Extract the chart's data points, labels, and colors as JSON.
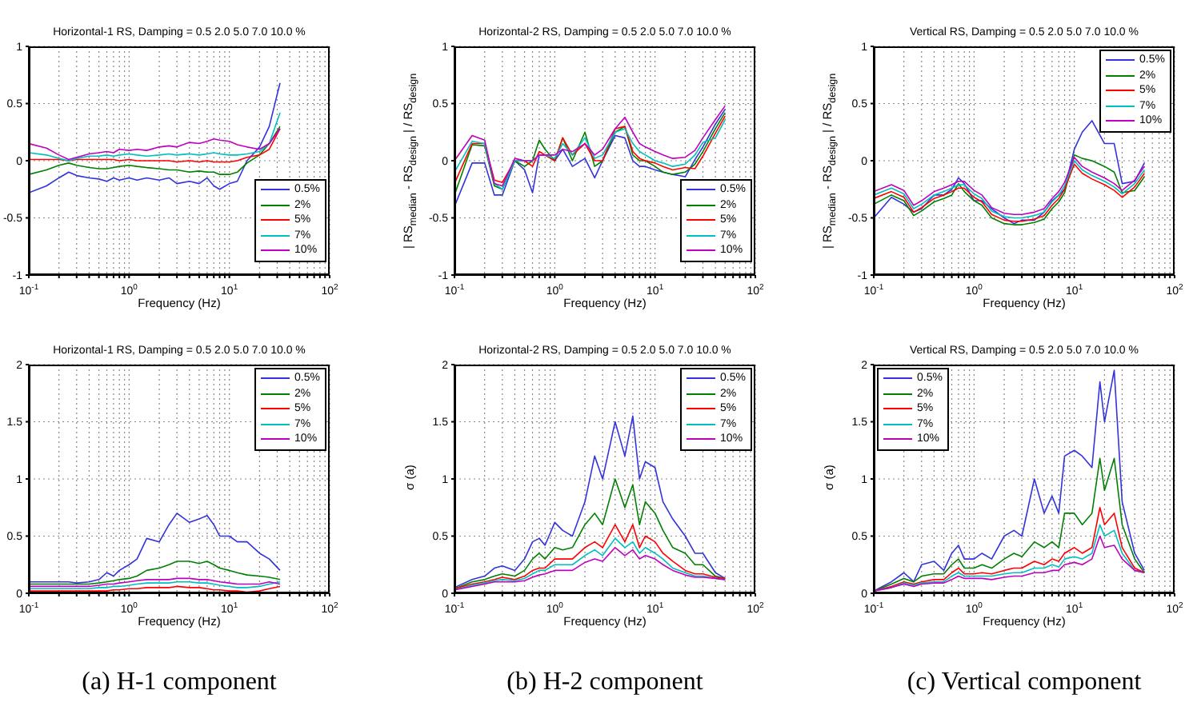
{
  "chart_data": [
    {
      "type": "line",
      "title": "Horizontal-1 RS, Damping = 0.5 2.0 5.0 7.0 10.0 %",
      "xlabel": "Frequency (Hz)",
      "log": "x",
      "grid": true,
      "legend": "bottom right",
      "xlim": [
        0.1,
        100
      ],
      "xticks": [
        {
          "value": 0.1,
          "label": "10$^{-1}$"
        },
        {
          "value": 0.2,
          "label": null
        },
        {
          "value": 0.3,
          "label": null
        },
        {
          "value": 0.4,
          "label": null
        },
        {
          "value": 0.5,
          "label": null
        },
        {
          "value": 0.6,
          "label": null
        },
        {
          "value": 0.7,
          "label": null
        },
        {
          "value": 0.8,
          "label": null
        },
        {
          "value": 0.9,
          "label": null
        },
        {
          "value": 1,
          "label": "10$^{0}$"
        },
        {
          "value": 2,
          "label": null
        },
        {
          "value": 3,
          "label": null
        },
        {
          "value": 4,
          "label": null
        },
        {
          "value": 5,
          "label": null
        },
        {
          "value": 6,
          "label": null
        },
        {
          "value": 7,
          "label": null
        },
        {
          "value": 8,
          "label": null
        },
        {
          "value": 9,
          "label": null
        },
        {
          "value": 10,
          "label": "10$^{1}$"
        },
        {
          "value": 20,
          "label": null
        },
        {
          "value": 30,
          "label": null
        },
        {
          "value": 40,
          "label": null
        },
        {
          "value": 50,
          "label": null
        },
        {
          "value": 60,
          "label": null
        },
        {
          "value": 70,
          "label": null
        },
        {
          "value": 80,
          "label": null
        },
        {
          "value": 90,
          "label": null
        },
        {
          "value": 100,
          "label": "10$^{2}$"
        }
      ],
      "ylim": [
        -1,
        1
      ],
      "yticks": [
        -1,
        -0.5,
        0,
        0.5,
        1
      ],
      "x": [
        0.1,
        0.15,
        0.2,
        0.25,
        0.3,
        0.4,
        0.5,
        0.6,
        0.7,
        0.8,
        1,
        1.2,
        1.5,
        2,
        2.5,
        3,
        4,
        5,
        6,
        7,
        8,
        10,
        12,
        15,
        20,
        25,
        32
      ],
      "series": [
        {
          "name": "0.5%",
          "color": "#3333dd",
          "values": [
            -0.28,
            -0.22,
            -0.15,
            -0.1,
            -0.13,
            -0.15,
            -0.16,
            -0.18,
            -0.15,
            -0.17,
            -0.15,
            -0.17,
            -0.15,
            -0.17,
            -0.15,
            -0.2,
            -0.18,
            -0.2,
            -0.15,
            -0.22,
            -0.25,
            -0.2,
            -0.18,
            0.0,
            0.12,
            0.3,
            0.68
          ]
        },
        {
          "name": "2%",
          "color": "#008000",
          "values": [
            -0.12,
            -0.08,
            -0.04,
            -0.02,
            -0.04,
            -0.06,
            -0.07,
            -0.07,
            -0.06,
            -0.05,
            -0.04,
            -0.05,
            -0.06,
            -0.07,
            -0.08,
            -0.08,
            -0.1,
            -0.09,
            -0.1,
            -0.1,
            -0.12,
            -0.12,
            -0.1,
            -0.02,
            0.05,
            0.15,
            0.3
          ]
        },
        {
          "name": "5%",
          "color": "#ff0000",
          "values": [
            0.01,
            0.01,
            0.01,
            0.0,
            0.01,
            0.01,
            0.01,
            0.01,
            0.01,
            0.0,
            0.01,
            0.0,
            0.0,
            0.0,
            0.0,
            -0.01,
            0.0,
            -0.01,
            0.0,
            -0.01,
            -0.01,
            -0.01,
            0.0,
            0.03,
            0.05,
            0.1,
            0.28
          ]
        },
        {
          "name": "7%",
          "color": "#00bfbf",
          "values": [
            0.07,
            0.05,
            0.02,
            0.0,
            0.02,
            0.04,
            0.04,
            0.05,
            0.04,
            0.05,
            0.06,
            0.05,
            0.04,
            0.05,
            0.06,
            0.05,
            0.06,
            0.05,
            0.06,
            0.07,
            0.06,
            0.05,
            0.05,
            0.06,
            0.08,
            0.15,
            0.42
          ]
        },
        {
          "name": "10%",
          "color": "#bf00bf",
          "values": [
            0.15,
            0.11,
            0.05,
            0.01,
            0.03,
            0.06,
            0.07,
            0.08,
            0.07,
            0.1,
            0.09,
            0.1,
            0.09,
            0.12,
            0.13,
            0.12,
            0.16,
            0.15,
            0.17,
            0.19,
            0.18,
            0.17,
            0.14,
            0.12,
            0.1,
            0.15,
            0.28
          ]
        }
      ]
    },
    {
      "type": "line",
      "title": "Horizontal-2 RS, Damping = 0.5 2.0 5.0 7.0 10.0 %",
      "xlabel": "Frequency (Hz)",
      "ylabel": "| RS$_{median}$ - RS$_{design}$ | / RS$_{design}$",
      "log": "x",
      "grid": true,
      "legend": "bottom right",
      "xlim": [
        0.1,
        100
      ],
      "xticks": [
        {
          "value": 0.1,
          "label": "10$^{-1}$"
        },
        {
          "value": 0.2,
          "label": null
        },
        {
          "value": 0.3,
          "label": null
        },
        {
          "value": 0.4,
          "label": null
        },
        {
          "value": 0.5,
          "label": null
        },
        {
          "value": 0.6,
          "label": null
        },
        {
          "value": 0.7,
          "label": null
        },
        {
          "value": 0.8,
          "label": null
        },
        {
          "value": 0.9,
          "label": null
        },
        {
          "value": 1,
          "label": "10$^{0}$"
        },
        {
          "value": 2,
          "label": null
        },
        {
          "value": 3,
          "label": null
        },
        {
          "value": 4,
          "label": null
        },
        {
          "value": 5,
          "label": null
        },
        {
          "value": 6,
          "label": null
        },
        {
          "value": 7,
          "label": null
        },
        {
          "value": 8,
          "label": null
        },
        {
          "value": 9,
          "label": null
        },
        {
          "value": 10,
          "label": "10$^{1}$"
        },
        {
          "value": 20,
          "label": null
        },
        {
          "value": 30,
          "label": null
        },
        {
          "value": 40,
          "label": null
        },
        {
          "value": 50,
          "label": null
        },
        {
          "value": 60,
          "label": null
        },
        {
          "value": 70,
          "label": null
        },
        {
          "value": 80,
          "label": null
        },
        {
          "value": 90,
          "label": null
        },
        {
          "value": 100,
          "label": "10$^{2}$"
        }
      ],
      "ylim": [
        -1,
        1
      ],
      "yticks": [
        -1,
        -0.5,
        0,
        0.5,
        1
      ],
      "x": [
        0.1,
        0.15,
        0.2,
        0.25,
        0.3,
        0.4,
        0.5,
        0.6,
        0.7,
        0.8,
        1,
        1.2,
        1.5,
        2,
        2.5,
        3,
        4,
        5,
        6,
        7,
        8,
        10,
        12,
        15,
        20,
        25,
        30,
        40,
        50
      ],
      "series": [
        {
          "name": "0.5%",
          "color": "#3333dd",
          "values": [
            -0.4,
            -0.02,
            -0.02,
            -0.3,
            -0.3,
            0.0,
            -0.08,
            -0.28,
            0.05,
            0.05,
            0.0,
            0.1,
            -0.05,
            0.02,
            -0.15,
            0.0,
            0.22,
            0.2,
            0.0,
            -0.05,
            -0.05,
            -0.08,
            -0.1,
            -0.12,
            -0.14,
            0.01,
            0.12,
            0.32,
            0.45
          ]
        },
        {
          "name": "2%",
          "color": "#008000",
          "values": [
            -0.3,
            0.14,
            0.13,
            -0.22,
            -0.25,
            0.0,
            -0.05,
            0.0,
            0.18,
            0.1,
            0.0,
            0.2,
            0.0,
            0.25,
            -0.05,
            0.0,
            0.25,
            0.3,
            0.05,
            0.0,
            0.0,
            -0.05,
            -0.1,
            -0.12,
            -0.1,
            -0.03,
            0.08,
            0.28,
            0.42
          ]
        },
        {
          "name": "5%",
          "color": "#ff0000",
          "values": [
            -0.2,
            0.15,
            0.15,
            -0.17,
            -0.19,
            0.0,
            0.0,
            -0.05,
            0.08,
            0.05,
            0.0,
            0.2,
            0.05,
            0.15,
            0.0,
            0.0,
            0.28,
            0.3,
            0.08,
            0.02,
            0.0,
            -0.02,
            -0.05,
            -0.08,
            -0.06,
            -0.07,
            0.04,
            0.24,
            0.39
          ]
        },
        {
          "name": "7%",
          "color": "#00bfbf",
          "values": [
            -0.1,
            0.17,
            0.15,
            -0.2,
            -0.25,
            0.0,
            0.0,
            0.0,
            0.05,
            0.05,
            0.02,
            0.15,
            0.05,
            0.2,
            0.02,
            0.05,
            0.25,
            0.28,
            0.15,
            0.08,
            0.05,
            0.0,
            -0.02,
            -0.05,
            -0.03,
            0.05,
            0.16,
            0.2,
            0.36
          ]
        },
        {
          "name": "10%",
          "color": "#bf00bf",
          "values": [
            0.0,
            0.22,
            0.18,
            -0.2,
            -0.22,
            0.02,
            0.0,
            0.0,
            0.05,
            0.05,
            0.05,
            0.1,
            0.08,
            0.15,
            0.05,
            0.1,
            0.28,
            0.38,
            0.25,
            0.15,
            0.12,
            0.08,
            0.05,
            0.02,
            0.03,
            0.09,
            0.2,
            0.36,
            0.48
          ]
        }
      ]
    },
    {
      "type": "line",
      "title": "Vertical RS, Damping = 0.5 2.0 5.0 7.0 10.0 %",
      "xlabel": "Frequency (Hz)",
      "ylabel": "| RS$_{median}$ - RS$_{design}$ | / RS$_{design}$",
      "log": "x",
      "grid": true,
      "legend": "top right",
      "xlim": [
        0.1,
        100
      ],
      "xticks": [
        {
          "value": 0.1,
          "label": "10$^{-1}$"
        },
        {
          "value": 0.2,
          "label": null
        },
        {
          "value": 0.3,
          "label": null
        },
        {
          "value": 0.4,
          "label": null
        },
        {
          "value": 0.5,
          "label": null
        },
        {
          "value": 0.6,
          "label": null
        },
        {
          "value": 0.7,
          "label": null
        },
        {
          "value": 0.8,
          "label": null
        },
        {
          "value": 0.9,
          "label": null
        },
        {
          "value": 1,
          "label": "10$^{0}$"
        },
        {
          "value": 2,
          "label": null
        },
        {
          "value": 3,
          "label": null
        },
        {
          "value": 4,
          "label": null
        },
        {
          "value": 5,
          "label": null
        },
        {
          "value": 6,
          "label": null
        },
        {
          "value": 7,
          "label": null
        },
        {
          "value": 8,
          "label": null
        },
        {
          "value": 9,
          "label": null
        },
        {
          "value": 10,
          "label": "10$^{1}$"
        },
        {
          "value": 20,
          "label": null
        },
        {
          "value": 30,
          "label": null
        },
        {
          "value": 40,
          "label": null
        },
        {
          "value": 50,
          "label": null
        },
        {
          "value": 60,
          "label": null
        },
        {
          "value": 70,
          "label": null
        },
        {
          "value": 80,
          "label": null
        },
        {
          "value": 90,
          "label": null
        },
        {
          "value": 100,
          "label": "10$^{2}$"
        }
      ],
      "ylim": [
        -1,
        1
      ],
      "yticks": [
        -1,
        -0.5,
        0,
        0.5,
        1
      ],
      "x": [
        0.1,
        0.15,
        0.2,
        0.25,
        0.3,
        0.4,
        0.5,
        0.6,
        0.7,
        0.8,
        1,
        1.2,
        1.5,
        2,
        2.5,
        3,
        4,
        5,
        6,
        7,
        8,
        10,
        12,
        15,
        20,
        25,
        30,
        40,
        50
      ],
      "series": [
        {
          "name": "0.5%",
          "color": "#3333dd",
          "values": [
            -0.5,
            -0.32,
            -0.38,
            -0.45,
            -0.42,
            -0.3,
            -0.3,
            -0.25,
            -0.15,
            -0.2,
            -0.35,
            -0.35,
            -0.42,
            -0.5,
            -0.55,
            -0.52,
            -0.52,
            -0.45,
            -0.35,
            -0.3,
            -0.25,
            0.1,
            0.25,
            0.35,
            0.15,
            0.15,
            -0.2,
            -0.18,
            -0.02
          ]
        },
        {
          "name": "2%",
          "color": "#008000",
          "values": [
            -0.38,
            -0.3,
            -0.35,
            -0.48,
            -0.44,
            -0.36,
            -0.33,
            -0.3,
            -0.2,
            -0.27,
            -0.35,
            -0.39,
            -0.5,
            -0.55,
            -0.56,
            -0.56,
            -0.54,
            -0.51,
            -0.42,
            -0.36,
            -0.28,
            0.05,
            0.02,
            0.0,
            -0.05,
            -0.1,
            -0.28,
            -0.26,
            -0.14
          ]
        },
        {
          "name": "5%",
          "color": "#ff0000",
          "values": [
            -0.33,
            -0.27,
            -0.32,
            -0.45,
            -0.41,
            -0.33,
            -0.3,
            -0.27,
            -0.24,
            -0.24,
            -0.32,
            -0.36,
            -0.47,
            -0.52,
            -0.53,
            -0.53,
            -0.51,
            -0.48,
            -0.39,
            -0.33,
            -0.25,
            -0.03,
            -0.11,
            -0.16,
            -0.21,
            -0.26,
            -0.32,
            -0.23,
            -0.11
          ]
        },
        {
          "name": "7%",
          "color": "#00bfbf",
          "values": [
            -0.3,
            -0.24,
            -0.29,
            -0.42,
            -0.38,
            -0.3,
            -0.27,
            -0.24,
            -0.21,
            -0.21,
            -0.29,
            -0.33,
            -0.44,
            -0.49,
            -0.5,
            -0.5,
            -0.48,
            -0.45,
            -0.36,
            -0.3,
            -0.22,
            0.0,
            -0.08,
            -0.13,
            -0.18,
            -0.23,
            -0.29,
            -0.2,
            -0.08
          ]
        },
        {
          "name": "10%",
          "color": "#bf00bf",
          "values": [
            -0.27,
            -0.21,
            -0.26,
            -0.39,
            -0.35,
            -0.27,
            -0.24,
            -0.21,
            -0.18,
            -0.18,
            -0.26,
            -0.3,
            -0.41,
            -0.46,
            -0.47,
            -0.47,
            -0.45,
            -0.42,
            -0.33,
            -0.27,
            -0.19,
            0.03,
            -0.05,
            -0.1,
            -0.15,
            -0.2,
            -0.26,
            -0.17,
            -0.05
          ]
        }
      ]
    },
    {
      "type": "line",
      "title": "Horizontal-1 RS, Damping = 0.5 2.0 5.0 7.0 10.0 %",
      "xlabel": "Frequency (Hz)",
      "log": "x",
      "grid": true,
      "legend": "top right",
      "annotations": [
        "(a) H-1 component"
      ],
      "xlim": [
        0.1,
        100
      ],
      "xticks": [
        {
          "value": 0.1,
          "label": "10$^{-1}$"
        },
        {
          "value": 0.2,
          "label": null
        },
        {
          "value": 0.3,
          "label": null
        },
        {
          "value": 0.4,
          "label": null
        },
        {
          "value": 0.5,
          "label": null
        },
        {
          "value": 0.6,
          "label": null
        },
        {
          "value": 0.7,
          "label": null
        },
        {
          "value": 0.8,
          "label": null
        },
        {
          "value": 0.9,
          "label": null
        },
        {
          "value": 1,
          "label": "10$^{0}$"
        },
        {
          "value": 2,
          "label": null
        },
        {
          "value": 3,
          "label": null
        },
        {
          "value": 4,
          "label": null
        },
        {
          "value": 5,
          "label": null
        },
        {
          "value": 6,
          "label": null
        },
        {
          "value": 7,
          "label": null
        },
        {
          "value": 8,
          "label": null
        },
        {
          "value": 9,
          "label": null
        },
        {
          "value": 10,
          "label": "10$^{1}$"
        },
        {
          "value": 20,
          "label": null
        },
        {
          "value": 30,
          "label": null
        },
        {
          "value": 40,
          "label": null
        },
        {
          "value": 50,
          "label": null
        },
        {
          "value": 60,
          "label": null
        },
        {
          "value": 70,
          "label": null
        },
        {
          "value": 80,
          "label": null
        },
        {
          "value": 90,
          "label": null
        },
        {
          "value": 100,
          "label": "10$^{2}$"
        }
      ],
      "ylim": [
        0,
        2
      ],
      "yticks": [
        0,
        0.5,
        1,
        1.5,
        2
      ],
      "x": [
        0.1,
        0.15,
        0.2,
        0.25,
        0.3,
        0.4,
        0.5,
        0.6,
        0.7,
        0.8,
        1,
        1.2,
        1.5,
        2,
        2.5,
        3,
        4,
        5,
        6,
        7,
        8,
        10,
        12,
        15,
        20,
        25,
        32
      ],
      "series": [
        {
          "name": "0.5%",
          "color": "#3333dd",
          "values": [
            0.1,
            0.1,
            0.1,
            0.1,
            0.09,
            0.1,
            0.12,
            0.18,
            0.15,
            0.2,
            0.25,
            0.3,
            0.48,
            0.45,
            0.6,
            0.7,
            0.62,
            0.65,
            0.68,
            0.6,
            0.5,
            0.5,
            0.45,
            0.45,
            0.35,
            0.3,
            0.2
          ]
        },
        {
          "name": "2%",
          "color": "#008000",
          "values": [
            0.08,
            0.08,
            0.08,
            0.08,
            0.08,
            0.08,
            0.09,
            0.1,
            0.11,
            0.12,
            0.13,
            0.15,
            0.2,
            0.22,
            0.25,
            0.28,
            0.28,
            0.26,
            0.28,
            0.25,
            0.22,
            0.2,
            0.18,
            0.16,
            0.15,
            0.14,
            0.12
          ]
        },
        {
          "name": "5%",
          "color": "#ff0000",
          "values": [
            0.02,
            0.02,
            0.02,
            0.02,
            0.02,
            0.02,
            0.02,
            0.02,
            0.03,
            0.03,
            0.04,
            0.04,
            0.05,
            0.05,
            0.05,
            0.06,
            0.05,
            0.05,
            0.04,
            0.03,
            0.03,
            0.02,
            0.02,
            0.01,
            0.02,
            0.04,
            0.06
          ]
        },
        {
          "name": "7%",
          "color": "#00bfbf",
          "values": [
            0.04,
            0.04,
            0.04,
            0.04,
            0.04,
            0.04,
            0.05,
            0.05,
            0.06,
            0.06,
            0.07,
            0.08,
            0.09,
            0.09,
            0.09,
            0.1,
            0.1,
            0.09,
            0.09,
            0.08,
            0.07,
            0.06,
            0.05,
            0.05,
            0.06,
            0.08,
            0.1
          ]
        },
        {
          "name": "10%",
          "color": "#bf00bf",
          "values": [
            0.06,
            0.06,
            0.06,
            0.06,
            0.06,
            0.06,
            0.07,
            0.08,
            0.08,
            0.09,
            0.1,
            0.11,
            0.12,
            0.12,
            0.12,
            0.13,
            0.13,
            0.12,
            0.12,
            0.11,
            0.1,
            0.09,
            0.08,
            0.08,
            0.08,
            0.1,
            0.08
          ]
        }
      ]
    },
    {
      "type": "line",
      "title": "Horizontal-2 RS, Damping = 0.5 2.0 5.0 7.0 10.0 %",
      "xlabel": "Frequency (Hz)",
      "ylabel": "σ (a)",
      "log": "x",
      "grid": true,
      "legend": "top right",
      "annotations": [
        "(b) H-2 component"
      ],
      "xlim": [
        0.1,
        100
      ],
      "xticks": [
        {
          "value": 0.1,
          "label": "10$^{-1}$"
        },
        {
          "value": 0.2,
          "label": null
        },
        {
          "value": 0.3,
          "label": null
        },
        {
          "value": 0.4,
          "label": null
        },
        {
          "value": 0.5,
          "label": null
        },
        {
          "value": 0.6,
          "label": null
        },
        {
          "value": 0.7,
          "label": null
        },
        {
          "value": 0.8,
          "label": null
        },
        {
          "value": 0.9,
          "label": null
        },
        {
          "value": 1,
          "label": "10$^{0}$"
        },
        {
          "value": 2,
          "label": null
        },
        {
          "value": 3,
          "label": null
        },
        {
          "value": 4,
          "label": null
        },
        {
          "value": 5,
          "label": null
        },
        {
          "value": 6,
          "label": null
        },
        {
          "value": 7,
          "label": null
        },
        {
          "value": 8,
          "label": null
        },
        {
          "value": 9,
          "label": null
        },
        {
          "value": 10,
          "label": "10$^{1}$"
        },
        {
          "value": 20,
          "label": null
        },
        {
          "value": 30,
          "label": null
        },
        {
          "value": 40,
          "label": null
        },
        {
          "value": 50,
          "label": null
        },
        {
          "value": 60,
          "label": null
        },
        {
          "value": 70,
          "label": null
        },
        {
          "value": 80,
          "label": null
        },
        {
          "value": 90,
          "label": null
        },
        {
          "value": 100,
          "label": "10$^{2}$"
        }
      ],
      "ylim": [
        0,
        2
      ],
      "yticks": [
        0,
        0.5,
        1,
        1.5,
        2
      ],
      "x": [
        0.1,
        0.15,
        0.2,
        0.25,
        0.3,
        0.4,
        0.5,
        0.6,
        0.7,
        0.8,
        1,
        1.2,
        1.5,
        2,
        2.5,
        3,
        4,
        5,
        6,
        7,
        8,
        10,
        12,
        15,
        20,
        25,
        30,
        40,
        50
      ],
      "series": [
        {
          "name": "0.5%",
          "color": "#3333dd",
          "values": [
            0.05,
            0.12,
            0.15,
            0.22,
            0.24,
            0.2,
            0.3,
            0.45,
            0.48,
            0.42,
            0.62,
            0.55,
            0.5,
            0.8,
            1.2,
            1.0,
            1.5,
            1.2,
            1.55,
            1.0,
            1.15,
            1.1,
            0.8,
            0.65,
            0.5,
            0.35,
            0.35,
            0.18,
            0.13
          ]
        },
        {
          "name": "2%",
          "color": "#008000",
          "values": [
            0.04,
            0.1,
            0.12,
            0.15,
            0.17,
            0.15,
            0.2,
            0.3,
            0.35,
            0.3,
            0.4,
            0.38,
            0.4,
            0.6,
            0.7,
            0.6,
            1.0,
            0.75,
            0.95,
            0.6,
            0.8,
            0.7,
            0.55,
            0.4,
            0.35,
            0.25,
            0.25,
            0.15,
            0.13
          ]
        },
        {
          "name": "5%",
          "color": "#ff0000",
          "values": [
            0.04,
            0.08,
            0.1,
            0.12,
            0.14,
            0.12,
            0.15,
            0.2,
            0.22,
            0.22,
            0.3,
            0.3,
            0.3,
            0.4,
            0.45,
            0.4,
            0.6,
            0.45,
            0.6,
            0.4,
            0.5,
            0.45,
            0.35,
            0.28,
            0.2,
            0.17,
            0.17,
            0.14,
            0.13
          ]
        },
        {
          "name": "7%",
          "color": "#00bfbf",
          "values": [
            0.03,
            0.07,
            0.09,
            0.11,
            0.12,
            0.11,
            0.13,
            0.17,
            0.2,
            0.2,
            0.25,
            0.25,
            0.25,
            0.33,
            0.38,
            0.33,
            0.48,
            0.4,
            0.45,
            0.35,
            0.4,
            0.35,
            0.3,
            0.22,
            0.18,
            0.15,
            0.15,
            0.13,
            0.12
          ]
        },
        {
          "name": "10%",
          "color": "#bf00bf",
          "values": [
            0.03,
            0.06,
            0.08,
            0.1,
            0.1,
            0.1,
            0.11,
            0.14,
            0.16,
            0.17,
            0.2,
            0.2,
            0.2,
            0.27,
            0.3,
            0.28,
            0.4,
            0.33,
            0.38,
            0.3,
            0.33,
            0.3,
            0.25,
            0.2,
            0.16,
            0.14,
            0.14,
            0.13,
            0.12
          ]
        }
      ]
    },
    {
      "type": "line",
      "title": "Vertical RS, Damping = 0.5 2.0 5.0 7.0 10.0 %",
      "xlabel": "Frequency (Hz)",
      "ylabel": "σ (a)",
      "log": "x",
      "grid": true,
      "legend": "top left",
      "annotations": [
        "(c) Vertical component"
      ],
      "xlim": [
        0.1,
        100
      ],
      "xticks": [
        {
          "value": 0.1,
          "label": "10$^{-1}$"
        },
        {
          "value": 0.2,
          "label": null
        },
        {
          "value": 0.3,
          "label": null
        },
        {
          "value": 0.4,
          "label": null
        },
        {
          "value": 0.5,
          "label": null
        },
        {
          "value": 0.6,
          "label": null
        },
        {
          "value": 0.7,
          "label": null
        },
        {
          "value": 0.8,
          "label": null
        },
        {
          "value": 0.9,
          "label": null
        },
        {
          "value": 1,
          "label": "10$^{0}$"
        },
        {
          "value": 2,
          "label": null
        },
        {
          "value": 3,
          "label": null
        },
        {
          "value": 4,
          "label": null
        },
        {
          "value": 5,
          "label": null
        },
        {
          "value": 6,
          "label": null
        },
        {
          "value": 7,
          "label": null
        },
        {
          "value": 8,
          "label": null
        },
        {
          "value": 9,
          "label": null
        },
        {
          "value": 10,
          "label": "10$^{1}$"
        },
        {
          "value": 20,
          "label": null
        },
        {
          "value": 30,
          "label": null
        },
        {
          "value": 40,
          "label": null
        },
        {
          "value": 50,
          "label": null
        },
        {
          "value": 60,
          "label": null
        },
        {
          "value": 70,
          "label": null
        },
        {
          "value": 80,
          "label": null
        },
        {
          "value": 90,
          "label": null
        },
        {
          "value": 100,
          "label": "10$^{2}$"
        }
      ],
      "ylim": [
        0,
        2
      ],
      "yticks": [
        0,
        0.5,
        1,
        1.5,
        2
      ],
      "x": [
        0.1,
        0.15,
        0.2,
        0.25,
        0.3,
        0.4,
        0.5,
        0.6,
        0.7,
        0.8,
        1,
        1.2,
        1.5,
        2,
        2.5,
        3,
        4,
        5,
        6,
        7,
        8,
        10,
        12,
        15,
        18,
        20,
        25,
        30,
        40,
        50
      ],
      "series": [
        {
          "name": "0.5%",
          "color": "#3333dd",
          "values": [
            0.02,
            0.1,
            0.18,
            0.1,
            0.25,
            0.28,
            0.2,
            0.35,
            0.42,
            0.3,
            0.3,
            0.35,
            0.3,
            0.5,
            0.55,
            0.5,
            1.0,
            0.7,
            0.85,
            0.7,
            1.2,
            1.25,
            1.2,
            1.1,
            1.85,
            1.5,
            1.95,
            0.8,
            0.35,
            0.2
          ]
        },
        {
          "name": "2%",
          "color": "#008000",
          "values": [
            0.02,
            0.08,
            0.13,
            0.1,
            0.15,
            0.17,
            0.17,
            0.25,
            0.3,
            0.22,
            0.22,
            0.25,
            0.22,
            0.3,
            0.35,
            0.32,
            0.45,
            0.4,
            0.45,
            0.4,
            0.7,
            0.7,
            0.6,
            0.7,
            1.18,
            0.9,
            1.18,
            0.6,
            0.3,
            0.18
          ]
        },
        {
          "name": "5%",
          "color": "#ff0000",
          "values": [
            0.02,
            0.06,
            0.1,
            0.08,
            0.1,
            0.12,
            0.12,
            0.18,
            0.22,
            0.17,
            0.17,
            0.18,
            0.17,
            0.2,
            0.22,
            0.22,
            0.28,
            0.25,
            0.3,
            0.28,
            0.35,
            0.4,
            0.35,
            0.4,
            0.75,
            0.6,
            0.7,
            0.4,
            0.22,
            0.18
          ]
        },
        {
          "name": "7%",
          "color": "#00bfbf",
          "values": [
            0.02,
            0.05,
            0.09,
            0.07,
            0.09,
            0.1,
            0.1,
            0.15,
            0.18,
            0.15,
            0.15,
            0.15,
            0.15,
            0.17,
            0.18,
            0.18,
            0.22,
            0.22,
            0.25,
            0.23,
            0.3,
            0.32,
            0.3,
            0.35,
            0.6,
            0.5,
            0.55,
            0.35,
            0.2,
            0.18
          ]
        },
        {
          "name": "10%",
          "color": "#bf00bf",
          "values": [
            0.02,
            0.05,
            0.08,
            0.06,
            0.08,
            0.09,
            0.09,
            0.12,
            0.15,
            0.13,
            0.13,
            0.13,
            0.12,
            0.14,
            0.15,
            0.15,
            0.18,
            0.18,
            0.2,
            0.2,
            0.25,
            0.27,
            0.25,
            0.3,
            0.5,
            0.4,
            0.42,
            0.3,
            0.2,
            0.18
          ]
        }
      ]
    }
  ]
}
